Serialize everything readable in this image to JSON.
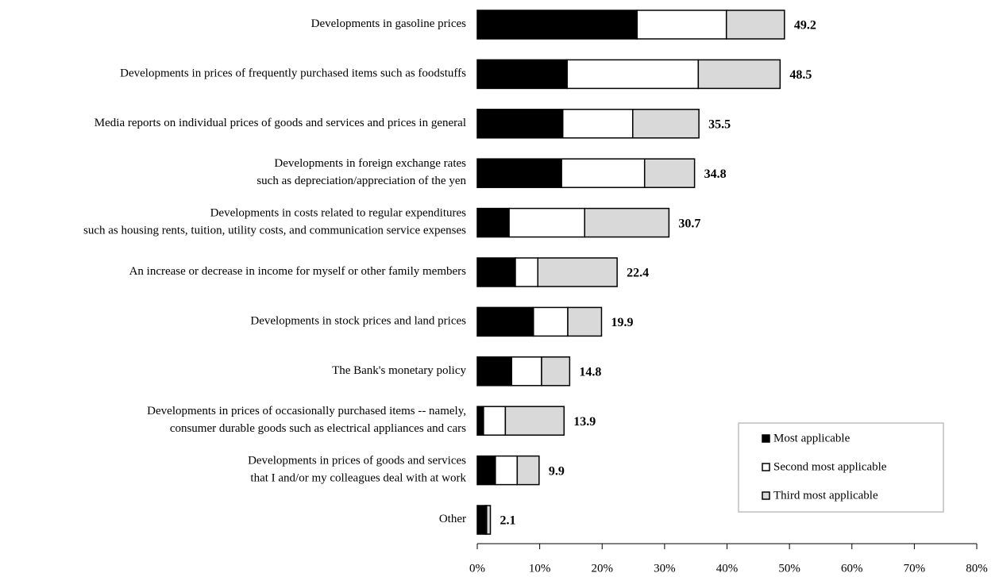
{
  "chart_data": {
    "type": "stacked-bar-horizontal",
    "categories": [
      [
        "Developments in gasoline prices"
      ],
      [
        "Developments in prices of frequently purchased items such as foodstuffs"
      ],
      [
        "Media reports on individual prices of goods and services and prices in general"
      ],
      [
        "Developments in foreign exchange rates",
        "such as depreciation/appreciation of the yen"
      ],
      [
        "Developments in costs related to regular expenditures",
        "such as housing rents, tuition, utility costs, and communication service expenses"
      ],
      [
        "An increase or decrease  in income for myself or other family members"
      ],
      [
        "Developments in stock prices and land prices"
      ],
      [
        "The Bank's monetary policy"
      ],
      [
        "Developments in prices of occasionally purchased items -- namely,",
        "consumer durable goods such as electrical appliances and cars"
      ],
      [
        "Developments in prices of goods and services",
        "that I and/or my colleagues deal with at work"
      ],
      [
        "Other"
      ]
    ],
    "series": [
      {
        "name": "Most applicable",
        "color": "#000000",
        "values": [
          25.6,
          14.4,
          13.7,
          13.5,
          5.1,
          6.1,
          9.0,
          5.5,
          1.0,
          2.9,
          1.3
        ]
      },
      {
        "name": "Second most applicable",
        "color": "#ffffff",
        "values": [
          14.3,
          21.0,
          11.2,
          13.3,
          12.1,
          3.6,
          5.5,
          4.8,
          3.5,
          3.5,
          0.2
        ]
      },
      {
        "name": "Third most applicable",
        "color": "#d9d9d9",
        "values": [
          9.3,
          13.1,
          10.6,
          8.0,
          13.5,
          12.7,
          5.4,
          4.5,
          9.4,
          3.5,
          0.6
        ]
      }
    ],
    "totals": [
      49.2,
      48.5,
      35.5,
      34.8,
      30.7,
      22.4,
      19.9,
      14.8,
      13.9,
      9.9,
      2.1
    ],
    "xlim": [
      0,
      80
    ],
    "xticks": [
      {
        "value": 0,
        "label": "0%"
      },
      {
        "value": 10,
        "label": "10%"
      },
      {
        "value": 20,
        "label": "20%"
      },
      {
        "value": 30,
        "label": "30%"
      },
      {
        "value": 40,
        "label": "40%"
      },
      {
        "value": 50,
        "label": "50%"
      },
      {
        "value": 60,
        "label": "60%"
      },
      {
        "value": 70,
        "label": "70%"
      },
      {
        "value": 80,
        "label": "80%"
      }
    ],
    "legend_position": "lower right"
  }
}
